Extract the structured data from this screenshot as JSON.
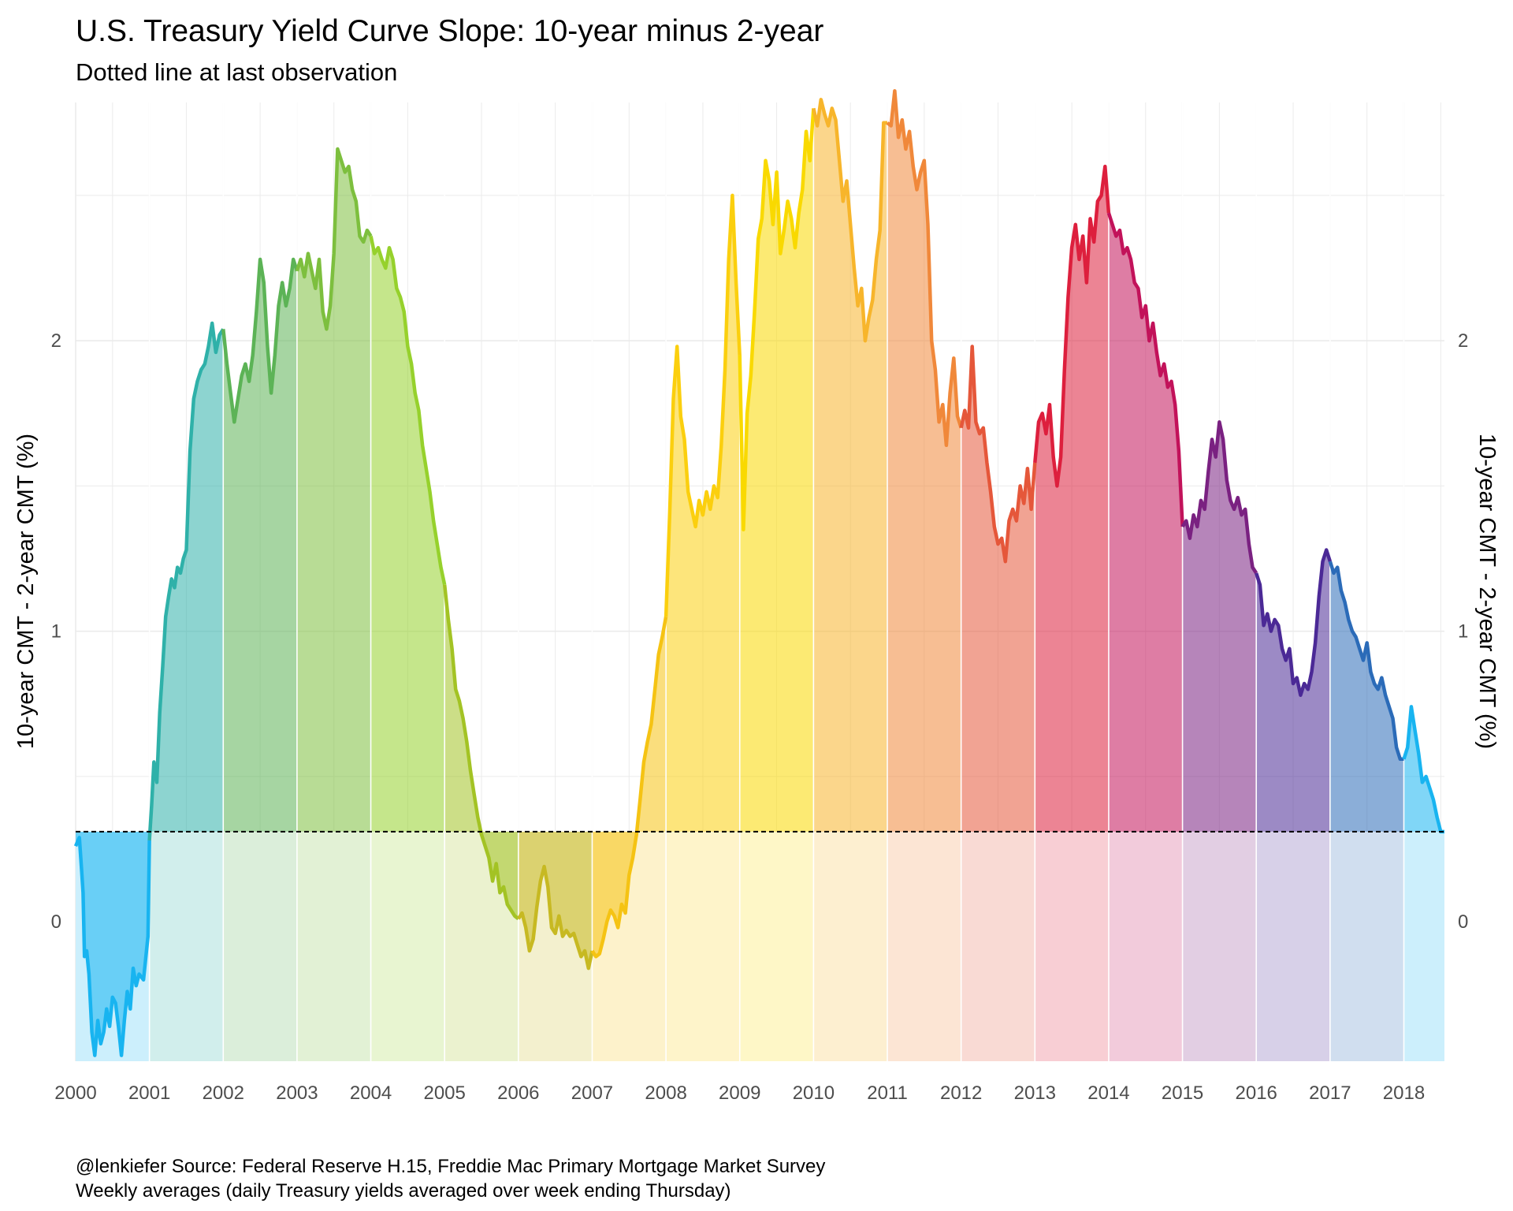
{
  "chart_data": {
    "type": "area",
    "title": "U.S. Treasury Yield Curve Slope: 10-year minus 2-year",
    "subtitle": "Dotted line at last observation",
    "ylabel_left": "10-year CMT - 2-year CMT (%)",
    "ylabel_right": "10-year CMT - 2-year CMT (%)",
    "caption_line1": "@lenkiefer Source: Federal Reserve H.15, Freddie Mac Primary Mortgage Market Survey",
    "caption_line2": "Weekly averages (daily Treasury yields averaged over week ending Thursday)",
    "xlim": [
      2000,
      2018.55
    ],
    "ylim": [
      -0.48,
      2.82
    ],
    "y_ticks": [
      0,
      1,
      2
    ],
    "y_tick_labels": [
      "0",
      "1",
      "2"
    ],
    "x_ticks": [
      2000,
      2001,
      2002,
      2003,
      2004,
      2005,
      2006,
      2007,
      2008,
      2009,
      2010,
      2011,
      2012,
      2013,
      2014,
      2015,
      2016,
      2017,
      2018
    ],
    "x_tick_labels": [
      "2000",
      "2001",
      "2002",
      "2003",
      "2004",
      "2005",
      "2006",
      "2007",
      "2008",
      "2009",
      "2010",
      "2011",
      "2012",
      "2013",
      "2014",
      "2015",
      "2016",
      "2017",
      "2018"
    ],
    "grid": true,
    "reference_line": 0.31,
    "year_colors": [
      "#18b4f0",
      "#2fb1a9",
      "#5cb356",
      "#7dbf3e",
      "#96d12c",
      "#a3c324",
      "#c7b922",
      "#f5c313",
      "#fbcf0e",
      "#f9d900",
      "#f7b52b",
      "#f0883a",
      "#e5573a",
      "#dd1f3d",
      "#c2125a",
      "#7a2181",
      "#4b2996",
      "#2b6bb8",
      "#18b4f0"
    ],
    "points": [
      [
        2000.0,
        0.26
      ],
      [
        2000.05,
        0.29
      ],
      [
        2000.08,
        0.18
      ],
      [
        2000.1,
        0.1
      ],
      [
        2000.12,
        -0.12
      ],
      [
        2000.15,
        -0.1
      ],
      [
        2000.18,
        -0.18
      ],
      [
        2000.22,
        -0.38
      ],
      [
        2000.26,
        -0.46
      ],
      [
        2000.3,
        -0.34
      ],
      [
        2000.34,
        -0.42
      ],
      [
        2000.38,
        -0.38
      ],
      [
        2000.42,
        -0.3
      ],
      [
        2000.46,
        -0.36
      ],
      [
        2000.5,
        -0.26
      ],
      [
        2000.54,
        -0.28
      ],
      [
        2000.58,
        -0.36
      ],
      [
        2000.62,
        -0.46
      ],
      [
        2000.66,
        -0.34
      ],
      [
        2000.7,
        -0.24
      ],
      [
        2000.74,
        -0.3
      ],
      [
        2000.78,
        -0.16
      ],
      [
        2000.82,
        -0.22
      ],
      [
        2000.86,
        -0.18
      ],
      [
        2000.92,
        -0.2
      ],
      [
        2000.98,
        -0.05
      ],
      [
        2001.0,
        0.28
      ],
      [
        2001.03,
        0.4
      ],
      [
        2001.06,
        0.55
      ],
      [
        2001.1,
        0.48
      ],
      [
        2001.14,
        0.72
      ],
      [
        2001.18,
        0.88
      ],
      [
        2001.22,
        1.05
      ],
      [
        2001.26,
        1.12
      ],
      [
        2001.3,
        1.18
      ],
      [
        2001.34,
        1.15
      ],
      [
        2001.38,
        1.22
      ],
      [
        2001.42,
        1.2
      ],
      [
        2001.46,
        1.25
      ],
      [
        2001.5,
        1.28
      ],
      [
        2001.55,
        1.62
      ],
      [
        2001.6,
        1.8
      ],
      [
        2001.65,
        1.86
      ],
      [
        2001.7,
        1.9
      ],
      [
        2001.75,
        1.92
      ],
      [
        2001.8,
        1.98
      ],
      [
        2001.85,
        2.06
      ],
      [
        2001.9,
        1.96
      ],
      [
        2001.95,
        2.02
      ],
      [
        2002.0,
        2.04
      ],
      [
        2002.05,
        1.92
      ],
      [
        2002.1,
        1.82
      ],
      [
        2002.15,
        1.72
      ],
      [
        2002.2,
        1.8
      ],
      [
        2002.25,
        1.88
      ],
      [
        2002.3,
        1.92
      ],
      [
        2002.35,
        1.86
      ],
      [
        2002.4,
        1.95
      ],
      [
        2002.45,
        2.1
      ],
      [
        2002.5,
        2.28
      ],
      [
        2002.55,
        2.2
      ],
      [
        2002.6,
        1.98
      ],
      [
        2002.65,
        1.82
      ],
      [
        2002.7,
        1.95
      ],
      [
        2002.75,
        2.12
      ],
      [
        2002.8,
        2.2
      ],
      [
        2002.85,
        2.12
      ],
      [
        2002.9,
        2.18
      ],
      [
        2002.95,
        2.28
      ],
      [
        2003.0,
        2.24
      ],
      [
        2003.05,
        2.28
      ],
      [
        2003.1,
        2.22
      ],
      [
        2003.15,
        2.3
      ],
      [
        2003.2,
        2.24
      ],
      [
        2003.25,
        2.18
      ],
      [
        2003.3,
        2.28
      ],
      [
        2003.35,
        2.1
      ],
      [
        2003.4,
        2.04
      ],
      [
        2003.45,
        2.12
      ],
      [
        2003.5,
        2.3
      ],
      [
        2003.55,
        2.66
      ],
      [
        2003.6,
        2.62
      ],
      [
        2003.65,
        2.58
      ],
      [
        2003.7,
        2.6
      ],
      [
        2003.75,
        2.52
      ],
      [
        2003.8,
        2.48
      ],
      [
        2003.85,
        2.36
      ],
      [
        2003.9,
        2.34
      ],
      [
        2003.95,
        2.38
      ],
      [
        2004.0,
        2.36
      ],
      [
        2004.05,
        2.3
      ],
      [
        2004.1,
        2.32
      ],
      [
        2004.15,
        2.28
      ],
      [
        2004.2,
        2.25
      ],
      [
        2004.25,
        2.32
      ],
      [
        2004.3,
        2.28
      ],
      [
        2004.35,
        2.18
      ],
      [
        2004.4,
        2.15
      ],
      [
        2004.45,
        2.1
      ],
      [
        2004.5,
        1.98
      ],
      [
        2004.55,
        1.92
      ],
      [
        2004.6,
        1.82
      ],
      [
        2004.65,
        1.76
      ],
      [
        2004.7,
        1.64
      ],
      [
        2004.75,
        1.56
      ],
      [
        2004.8,
        1.48
      ],
      [
        2004.85,
        1.38
      ],
      [
        2004.9,
        1.3
      ],
      [
        2004.95,
        1.22
      ],
      [
        2005.0,
        1.16
      ],
      [
        2005.05,
        1.04
      ],
      [
        2005.1,
        0.94
      ],
      [
        2005.15,
        0.8
      ],
      [
        2005.2,
        0.76
      ],
      [
        2005.25,
        0.7
      ],
      [
        2005.3,
        0.62
      ],
      [
        2005.35,
        0.52
      ],
      [
        2005.4,
        0.44
      ],
      [
        2005.45,
        0.36
      ],
      [
        2005.5,
        0.3
      ],
      [
        2005.55,
        0.26
      ],
      [
        2005.6,
        0.22
      ],
      [
        2005.65,
        0.14
      ],
      [
        2005.7,
        0.2
      ],
      [
        2005.75,
        0.1
      ],
      [
        2005.8,
        0.12
      ],
      [
        2005.85,
        0.06
      ],
      [
        2005.9,
        0.04
      ],
      [
        2005.95,
        0.02
      ],
      [
        2006.0,
        0.01
      ],
      [
        2006.05,
        0.03
      ],
      [
        2006.1,
        -0.02
      ],
      [
        2006.15,
        -0.1
      ],
      [
        2006.2,
        -0.06
      ],
      [
        2006.25,
        0.05
      ],
      [
        2006.3,
        0.14
      ],
      [
        2006.35,
        0.19
      ],
      [
        2006.4,
        0.12
      ],
      [
        2006.45,
        -0.02
      ],
      [
        2006.5,
        -0.04
      ],
      [
        2006.55,
        0.02
      ],
      [
        2006.6,
        -0.05
      ],
      [
        2006.65,
        -0.03
      ],
      [
        2006.7,
        -0.05
      ],
      [
        2006.75,
        -0.04
      ],
      [
        2006.8,
        -0.08
      ],
      [
        2006.85,
        -0.12
      ],
      [
        2006.9,
        -0.1
      ],
      [
        2006.95,
        -0.16
      ],
      [
        2007.0,
        -0.1
      ],
      [
        2007.05,
        -0.12
      ],
      [
        2007.1,
        -0.11
      ],
      [
        2007.15,
        -0.06
      ],
      [
        2007.2,
        0.0
      ],
      [
        2007.25,
        0.04
      ],
      [
        2007.3,
        0.02
      ],
      [
        2007.35,
        -0.02
      ],
      [
        2007.4,
        0.06
      ],
      [
        2007.45,
        0.03
      ],
      [
        2007.5,
        0.16
      ],
      [
        2007.55,
        0.22
      ],
      [
        2007.6,
        0.3
      ],
      [
        2007.65,
        0.42
      ],
      [
        2007.7,
        0.55
      ],
      [
        2007.75,
        0.62
      ],
      [
        2007.8,
        0.68
      ],
      [
        2007.85,
        0.8
      ],
      [
        2007.9,
        0.92
      ],
      [
        2007.95,
        0.98
      ],
      [
        2008.0,
        1.05
      ],
      [
        2008.05,
        1.4
      ],
      [
        2008.1,
        1.8
      ],
      [
        2008.15,
        1.98
      ],
      [
        2008.2,
        1.74
      ],
      [
        2008.25,
        1.66
      ],
      [
        2008.3,
        1.48
      ],
      [
        2008.35,
        1.42
      ],
      [
        2008.4,
        1.36
      ],
      [
        2008.45,
        1.45
      ],
      [
        2008.5,
        1.4
      ],
      [
        2008.55,
        1.48
      ],
      [
        2008.6,
        1.42
      ],
      [
        2008.65,
        1.5
      ],
      [
        2008.7,
        1.46
      ],
      [
        2008.75,
        1.64
      ],
      [
        2008.8,
        1.9
      ],
      [
        2008.85,
        2.28
      ],
      [
        2008.9,
        2.5
      ],
      [
        2008.95,
        2.2
      ],
      [
        2009.0,
        1.95
      ],
      [
        2009.05,
        1.35
      ],
      [
        2009.1,
        1.75
      ],
      [
        2009.15,
        1.88
      ],
      [
        2009.2,
        2.1
      ],
      [
        2009.25,
        2.35
      ],
      [
        2009.3,
        2.42
      ],
      [
        2009.35,
        2.62
      ],
      [
        2009.4,
        2.55
      ],
      [
        2009.45,
        2.4
      ],
      [
        2009.5,
        2.58
      ],
      [
        2009.55,
        2.3
      ],
      [
        2009.6,
        2.38
      ],
      [
        2009.65,
        2.48
      ],
      [
        2009.7,
        2.42
      ],
      [
        2009.75,
        2.32
      ],
      [
        2009.8,
        2.44
      ],
      [
        2009.85,
        2.52
      ],
      [
        2009.9,
        2.72
      ],
      [
        2009.95,
        2.62
      ],
      [
        2010.0,
        2.8
      ],
      [
        2010.05,
        2.74
      ],
      [
        2010.1,
        2.83
      ],
      [
        2010.15,
        2.78
      ],
      [
        2010.2,
        2.74
      ],
      [
        2010.25,
        2.8
      ],
      [
        2010.3,
        2.76
      ],
      [
        2010.35,
        2.62
      ],
      [
        2010.4,
        2.48
      ],
      [
        2010.45,
        2.55
      ],
      [
        2010.5,
        2.4
      ],
      [
        2010.55,
        2.25
      ],
      [
        2010.6,
        2.12
      ],
      [
        2010.65,
        2.18
      ],
      [
        2010.7,
        2.0
      ],
      [
        2010.75,
        2.08
      ],
      [
        2010.8,
        2.14
      ],
      [
        2010.85,
        2.28
      ],
      [
        2010.9,
        2.38
      ],
      [
        2010.95,
        2.75
      ],
      [
        2011.0,
        2.75
      ],
      [
        2011.05,
        2.74
      ],
      [
        2011.1,
        2.86
      ],
      [
        2011.15,
        2.7
      ],
      [
        2011.2,
        2.76
      ],
      [
        2011.25,
        2.66
      ],
      [
        2011.3,
        2.72
      ],
      [
        2011.35,
        2.6
      ],
      [
        2011.4,
        2.52
      ],
      [
        2011.45,
        2.58
      ],
      [
        2011.5,
        2.62
      ],
      [
        2011.55,
        2.4
      ],
      [
        2011.6,
        2.0
      ],
      [
        2011.65,
        1.9
      ],
      [
        2011.7,
        1.72
      ],
      [
        2011.75,
        1.78
      ],
      [
        2011.8,
        1.64
      ],
      [
        2011.85,
        1.82
      ],
      [
        2011.9,
        1.94
      ],
      [
        2011.95,
        1.74
      ],
      [
        2012.0,
        1.7
      ],
      [
        2012.05,
        1.76
      ],
      [
        2012.1,
        1.7
      ],
      [
        2012.15,
        1.98
      ],
      [
        2012.2,
        1.72
      ],
      [
        2012.25,
        1.68
      ],
      [
        2012.3,
        1.7
      ],
      [
        2012.35,
        1.58
      ],
      [
        2012.4,
        1.48
      ],
      [
        2012.45,
        1.36
      ],
      [
        2012.5,
        1.3
      ],
      [
        2012.55,
        1.32
      ],
      [
        2012.6,
        1.24
      ],
      [
        2012.65,
        1.38
      ],
      [
        2012.7,
        1.42
      ],
      [
        2012.75,
        1.38
      ],
      [
        2012.8,
        1.5
      ],
      [
        2012.85,
        1.44
      ],
      [
        2012.9,
        1.56
      ],
      [
        2012.95,
        1.42
      ],
      [
        2013.0,
        1.58
      ],
      [
        2013.05,
        1.72
      ],
      [
        2013.1,
        1.75
      ],
      [
        2013.15,
        1.68
      ],
      [
        2013.2,
        1.78
      ],
      [
        2013.25,
        1.6
      ],
      [
        2013.3,
        1.5
      ],
      [
        2013.35,
        1.6
      ],
      [
        2013.4,
        1.9
      ],
      [
        2013.45,
        2.15
      ],
      [
        2013.5,
        2.32
      ],
      [
        2013.55,
        2.4
      ],
      [
        2013.6,
        2.28
      ],
      [
        2013.65,
        2.36
      ],
      [
        2013.7,
        2.2
      ],
      [
        2013.75,
        2.42
      ],
      [
        2013.8,
        2.34
      ],
      [
        2013.85,
        2.48
      ],
      [
        2013.9,
        2.5
      ],
      [
        2013.95,
        2.6
      ],
      [
        2014.0,
        2.44
      ],
      [
        2014.05,
        2.4
      ],
      [
        2014.1,
        2.36
      ],
      [
        2014.15,
        2.38
      ],
      [
        2014.2,
        2.3
      ],
      [
        2014.25,
        2.32
      ],
      [
        2014.3,
        2.28
      ],
      [
        2014.35,
        2.2
      ],
      [
        2014.4,
        2.18
      ],
      [
        2014.45,
        2.08
      ],
      [
        2014.5,
        2.12
      ],
      [
        2014.55,
        2.0
      ],
      [
        2014.6,
        2.06
      ],
      [
        2014.65,
        1.96
      ],
      [
        2014.7,
        1.88
      ],
      [
        2014.75,
        1.92
      ],
      [
        2014.8,
        1.84
      ],
      [
        2014.85,
        1.86
      ],
      [
        2014.9,
        1.78
      ],
      [
        2014.95,
        1.62
      ],
      [
        2015.0,
        1.36
      ],
      [
        2015.05,
        1.38
      ],
      [
        2015.1,
        1.32
      ],
      [
        2015.15,
        1.4
      ],
      [
        2015.2,
        1.36
      ],
      [
        2015.25,
        1.45
      ],
      [
        2015.3,
        1.42
      ],
      [
        2015.35,
        1.55
      ],
      [
        2015.4,
        1.66
      ],
      [
        2015.45,
        1.6
      ],
      [
        2015.5,
        1.72
      ],
      [
        2015.55,
        1.66
      ],
      [
        2015.6,
        1.52
      ],
      [
        2015.65,
        1.45
      ],
      [
        2015.7,
        1.42
      ],
      [
        2015.75,
        1.46
      ],
      [
        2015.8,
        1.4
      ],
      [
        2015.85,
        1.42
      ],
      [
        2015.9,
        1.3
      ],
      [
        2015.95,
        1.22
      ],
      [
        2016.0,
        1.2
      ],
      [
        2016.05,
        1.16
      ],
      [
        2016.1,
        1.02
      ],
      [
        2016.15,
        1.06
      ],
      [
        2016.2,
        1.0
      ],
      [
        2016.25,
        1.04
      ],
      [
        2016.3,
        1.02
      ],
      [
        2016.35,
        0.94
      ],
      [
        2016.4,
        0.9
      ],
      [
        2016.45,
        0.94
      ],
      [
        2016.5,
        0.82
      ],
      [
        2016.55,
        0.84
      ],
      [
        2016.6,
        0.78
      ],
      [
        2016.65,
        0.82
      ],
      [
        2016.7,
        0.8
      ],
      [
        2016.75,
        0.86
      ],
      [
        2016.8,
        0.96
      ],
      [
        2016.85,
        1.12
      ],
      [
        2016.9,
        1.24
      ],
      [
        2016.95,
        1.28
      ],
      [
        2017.0,
        1.24
      ],
      [
        2017.05,
        1.2
      ],
      [
        2017.1,
        1.22
      ],
      [
        2017.15,
        1.14
      ],
      [
        2017.2,
        1.1
      ],
      [
        2017.25,
        1.04
      ],
      [
        2017.3,
        1.0
      ],
      [
        2017.35,
        0.98
      ],
      [
        2017.4,
        0.94
      ],
      [
        2017.45,
        0.9
      ],
      [
        2017.5,
        0.96
      ],
      [
        2017.55,
        0.86
      ],
      [
        2017.6,
        0.82
      ],
      [
        2017.65,
        0.8
      ],
      [
        2017.7,
        0.84
      ],
      [
        2017.75,
        0.78
      ],
      [
        2017.8,
        0.74
      ],
      [
        2017.85,
        0.7
      ],
      [
        2017.9,
        0.6
      ],
      [
        2017.95,
        0.56
      ],
      [
        2018.0,
        0.56
      ],
      [
        2018.05,
        0.6
      ],
      [
        2018.1,
        0.74
      ],
      [
        2018.15,
        0.66
      ],
      [
        2018.2,
        0.58
      ],
      [
        2018.25,
        0.48
      ],
      [
        2018.3,
        0.5
      ],
      [
        2018.35,
        0.46
      ],
      [
        2018.4,
        0.42
      ],
      [
        2018.45,
        0.36
      ],
      [
        2018.5,
        0.31
      ],
      [
        2018.55,
        0.31
      ]
    ]
  }
}
